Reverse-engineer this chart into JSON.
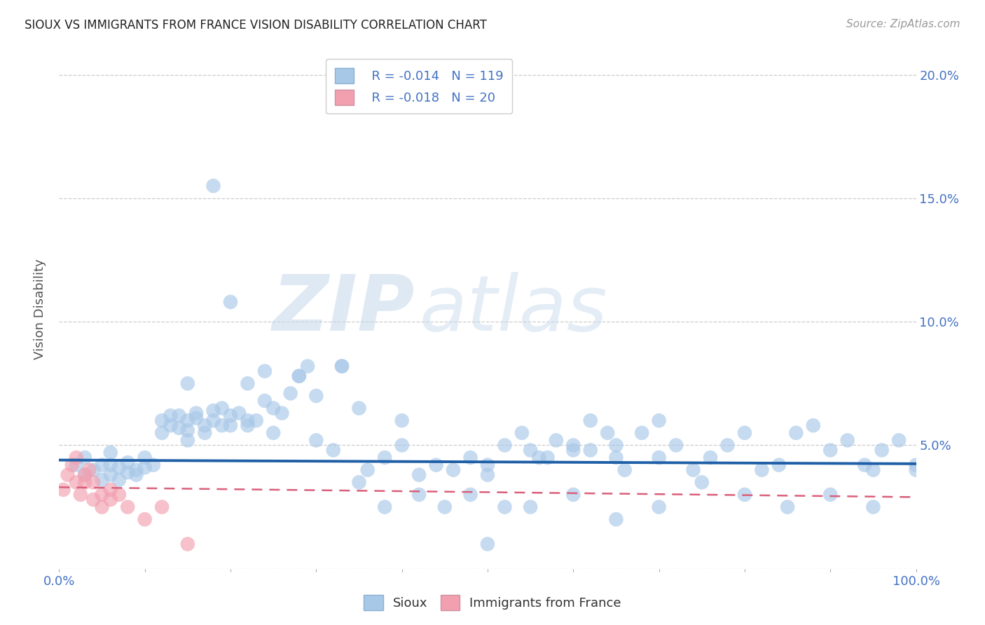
{
  "title": "SIOUX VS IMMIGRANTS FROM FRANCE VISION DISABILITY CORRELATION CHART",
  "source": "Source: ZipAtlas.com",
  "ylabel": "Vision Disability",
  "xlim": [
    0,
    1.0
  ],
  "ylim": [
    0,
    0.21
  ],
  "yticks": [
    0.0,
    0.05,
    0.1,
    0.15,
    0.2
  ],
  "legend_blue_r": "-0.014",
  "legend_blue_n": "119",
  "legend_pink_r": "-0.018",
  "legend_pink_n": "20",
  "blue_color": "#a8c8e8",
  "blue_line_color": "#1f5fa6",
  "pink_color": "#f2a0b0",
  "pink_line_color": "#d9607a",
  "blue_trend_start": 0.044,
  "blue_trend_end": 0.0425,
  "pink_trend_start": 0.033,
  "pink_trend_end": 0.029,
  "sioux_x": [
    0.02,
    0.03,
    0.03,
    0.04,
    0.05,
    0.05,
    0.06,
    0.06,
    0.06,
    0.07,
    0.07,
    0.08,
    0.08,
    0.09,
    0.09,
    0.1,
    0.1,
    0.11,
    0.12,
    0.12,
    0.13,
    0.13,
    0.14,
    0.14,
    0.15,
    0.15,
    0.15,
    0.16,
    0.16,
    0.17,
    0.17,
    0.18,
    0.18,
    0.19,
    0.19,
    0.2,
    0.2,
    0.21,
    0.22,
    0.22,
    0.23,
    0.24,
    0.25,
    0.26,
    0.27,
    0.28,
    0.29,
    0.3,
    0.32,
    0.33,
    0.35,
    0.36,
    0.38,
    0.4,
    0.42,
    0.44,
    0.46,
    0.48,
    0.5,
    0.5,
    0.52,
    0.54,
    0.55,
    0.56,
    0.58,
    0.6,
    0.6,
    0.62,
    0.64,
    0.65,
    0.65,
    0.66,
    0.68,
    0.7,
    0.72,
    0.74,
    0.76,
    0.78,
    0.8,
    0.82,
    0.84,
    0.86,
    0.88,
    0.9,
    0.92,
    0.94,
    0.95,
    0.96,
    0.98,
    1.0,
    0.15,
    0.2,
    0.22,
    0.25,
    0.3,
    0.38,
    0.42,
    0.48,
    0.5,
    0.55,
    0.6,
    0.65,
    0.7,
    0.75,
    0.8,
    0.85,
    0.9,
    0.95,
    1.0,
    0.18,
    0.24,
    0.28,
    0.33,
    0.35,
    0.4,
    0.45,
    0.52,
    0.57,
    0.62,
    0.7
  ],
  "sioux_y": [
    0.042,
    0.038,
    0.045,
    0.04,
    0.036,
    0.042,
    0.038,
    0.042,
    0.047,
    0.036,
    0.041,
    0.039,
    0.043,
    0.04,
    0.038,
    0.045,
    0.041,
    0.042,
    0.06,
    0.055,
    0.058,
    0.062,
    0.057,
    0.062,
    0.052,
    0.056,
    0.06,
    0.061,
    0.063,
    0.055,
    0.058,
    0.064,
    0.06,
    0.058,
    0.065,
    0.062,
    0.058,
    0.063,
    0.058,
    0.06,
    0.06,
    0.068,
    0.055,
    0.063,
    0.071,
    0.078,
    0.082,
    0.052,
    0.048,
    0.082,
    0.035,
    0.04,
    0.045,
    0.05,
    0.038,
    0.042,
    0.04,
    0.045,
    0.038,
    0.042,
    0.05,
    0.055,
    0.048,
    0.045,
    0.052,
    0.05,
    0.048,
    0.06,
    0.055,
    0.05,
    0.045,
    0.04,
    0.055,
    0.06,
    0.05,
    0.04,
    0.045,
    0.05,
    0.055,
    0.04,
    0.042,
    0.055,
    0.058,
    0.048,
    0.052,
    0.042,
    0.04,
    0.048,
    0.052,
    0.042,
    0.075,
    0.108,
    0.075,
    0.065,
    0.07,
    0.025,
    0.03,
    0.03,
    0.01,
    0.025,
    0.03,
    0.02,
    0.025,
    0.035,
    0.03,
    0.025,
    0.03,
    0.025,
    0.04,
    0.155,
    0.08,
    0.078,
    0.082,
    0.065,
    0.06,
    0.025,
    0.025,
    0.045,
    0.048,
    0.045
  ],
  "france_x": [
    0.005,
    0.01,
    0.015,
    0.02,
    0.02,
    0.025,
    0.03,
    0.03,
    0.035,
    0.04,
    0.04,
    0.05,
    0.05,
    0.06,
    0.06,
    0.07,
    0.08,
    0.1,
    0.12,
    0.15
  ],
  "france_y": [
    0.032,
    0.038,
    0.042,
    0.035,
    0.045,
    0.03,
    0.035,
    0.038,
    0.04,
    0.028,
    0.035,
    0.03,
    0.025,
    0.032,
    0.028,
    0.03,
    0.025,
    0.02,
    0.025,
    0.01
  ],
  "watermark_zip": "ZIP",
  "watermark_atlas": "atlas",
  "background_color": "#ffffff",
  "grid_color": "#cccccc"
}
